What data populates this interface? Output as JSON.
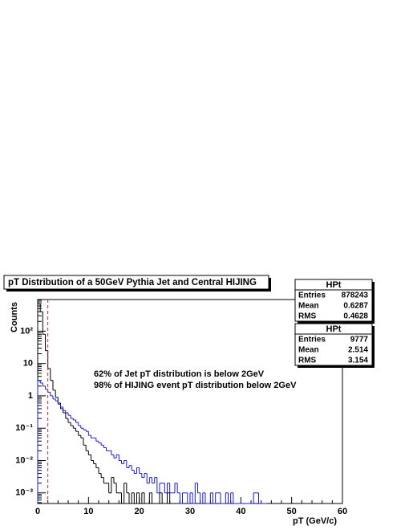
{
  "chart_data": {
    "type": "histogram",
    "title": "pT Distribution of a 50GeV Pythia Jet and Central HIJING",
    "x_label": "pT (GeV/c)",
    "y_label": "Counts",
    "log_y": true,
    "xlim": [
      0,
      60
    ],
    "xticks": [
      0,
      10,
      20,
      30,
      40,
      50,
      60
    ],
    "ylim": [
      0.00047,
      950
    ],
    "yticks": [
      {
        "value": 0.001,
        "label": "10⁻³"
      },
      {
        "value": 0.01,
        "label": "10⁻²"
      },
      {
        "value": 0.1,
        "label": "10⁻¹"
      },
      1,
      10,
      {
        "value": 100,
        "label": "10²"
      }
    ],
    "vline": {
      "x": 2,
      "color": "#e02020"
    },
    "annotations": [
      {
        "text": "62% of Jet pT distribution is below 2GeV",
        "color": "#1a1ad8"
      },
      {
        "text": "98% of HIJING event pT distribution below 2GeV",
        "color": "#000000"
      }
    ],
    "bins": [
      0,
      0.5,
      1,
      1.5,
      2,
      2.5,
      3,
      3.5,
      4,
      4.5,
      5,
      5.5,
      6,
      6.5,
      7,
      7.5,
      8,
      8.5,
      9,
      9.5,
      10,
      10.5,
      11,
      11.5,
      12,
      12.5,
      13,
      13.5,
      14,
      14.5,
      15,
      15.5,
      16,
      16.5,
      17,
      17.5,
      18,
      18.5,
      19,
      19.5,
      20,
      20.5,
      21,
      21.5,
      22,
      22.5,
      23,
      23.5,
      24,
      24.5,
      25,
      25.5,
      26,
      26.5,
      27,
      27.5,
      28,
      28.5,
      29,
      29.5,
      30,
      30.5,
      31,
      31.5,
      32,
      32.5,
      33,
      33.5,
      34,
      34.5,
      35,
      35.5,
      36,
      36.5,
      37,
      37.5,
      38,
      38.5,
      39,
      39.5,
      40,
      40.5,
      41,
      41.5,
      42,
      42.5,
      43,
      43.5,
      44,
      44.5,
      45
    ],
    "series": [
      {
        "name": "HIJING",
        "color": "#000000",
        "values": [
          700,
          400,
          80,
          25,
          7,
          3,
          1.5,
          0.9,
          0.6,
          0.4,
          0.3,
          0.2,
          0.15,
          0.12,
          0.1,
          0.08,
          0.06,
          0.05,
          0.03,
          0.02,
          0.015,
          0.01,
          0.008,
          0.006,
          0.004,
          0.003,
          0.002,
          0.002,
          0.001,
          0.003,
          0.002,
          0.001,
          0.001,
          0,
          0.002,
          0.001,
          0,
          0.001,
          0,
          0.001,
          0,
          0.001,
          0,
          0,
          0.001,
          0,
          0,
          0,
          0.001,
          0,
          0,
          0.001,
          0,
          0,
          0,
          0,
          0,
          0,
          0,
          0,
          0,
          0,
          0,
          0,
          0,
          0,
          0,
          0,
          0,
          0,
          0,
          0,
          0,
          0,
          0,
          0,
          0,
          0,
          0,
          0,
          0,
          0,
          0,
          0,
          0,
          0,
          0,
          0,
          0,
          0
        ]
      },
      {
        "name": "Jet",
        "color": "#1a1ad8",
        "values": [
          3,
          2.5,
          2,
          1.6,
          1.3,
          1.0,
          0.8,
          0.7,
          0.55,
          0.45,
          0.35,
          0.3,
          0.25,
          0.2,
          0.18,
          0.15,
          0.12,
          0.1,
          0.09,
          0.08,
          0.06,
          0.05,
          0.05,
          0.04,
          0.035,
          0.03,
          0.025,
          0.02,
          0.02,
          0.015,
          0.012,
          0.015,
          0.01,
          0.008,
          0.01,
          0.006,
          0.007,
          0.005,
          0.004,
          0.006,
          0.004,
          0.003,
          0.004,
          0.002,
          0.003,
          0.002,
          0.003,
          0.001,
          0.002,
          0.002,
          0.001,
          0.002,
          0.001,
          0.001,
          0.002,
          0.001,
          0,
          0.001,
          0.001,
          0,
          0.001,
          0,
          0.002,
          0.001,
          0,
          0.001,
          0,
          0,
          0.001,
          0,
          0.001,
          0.001,
          0,
          0,
          0.001,
          0,
          0.001,
          0,
          0,
          0,
          0,
          0,
          0,
          0,
          0,
          0.001,
          0.001,
          0,
          0,
          0
        ]
      }
    ],
    "stats_boxes": [
      {
        "title": "HPt",
        "color": "#000000",
        "rows": [
          [
            "Entries",
            "878243"
          ],
          [
            "Mean",
            "0.6287"
          ],
          [
            "RMS",
            "0.4628"
          ]
        ]
      },
      {
        "title": "HPt",
        "color": "#1a1ad8",
        "rows": [
          [
            "Entries",
            "9777"
          ],
          [
            "Mean",
            "2.514"
          ],
          [
            "RMS",
            "3.154"
          ]
        ]
      }
    ]
  }
}
